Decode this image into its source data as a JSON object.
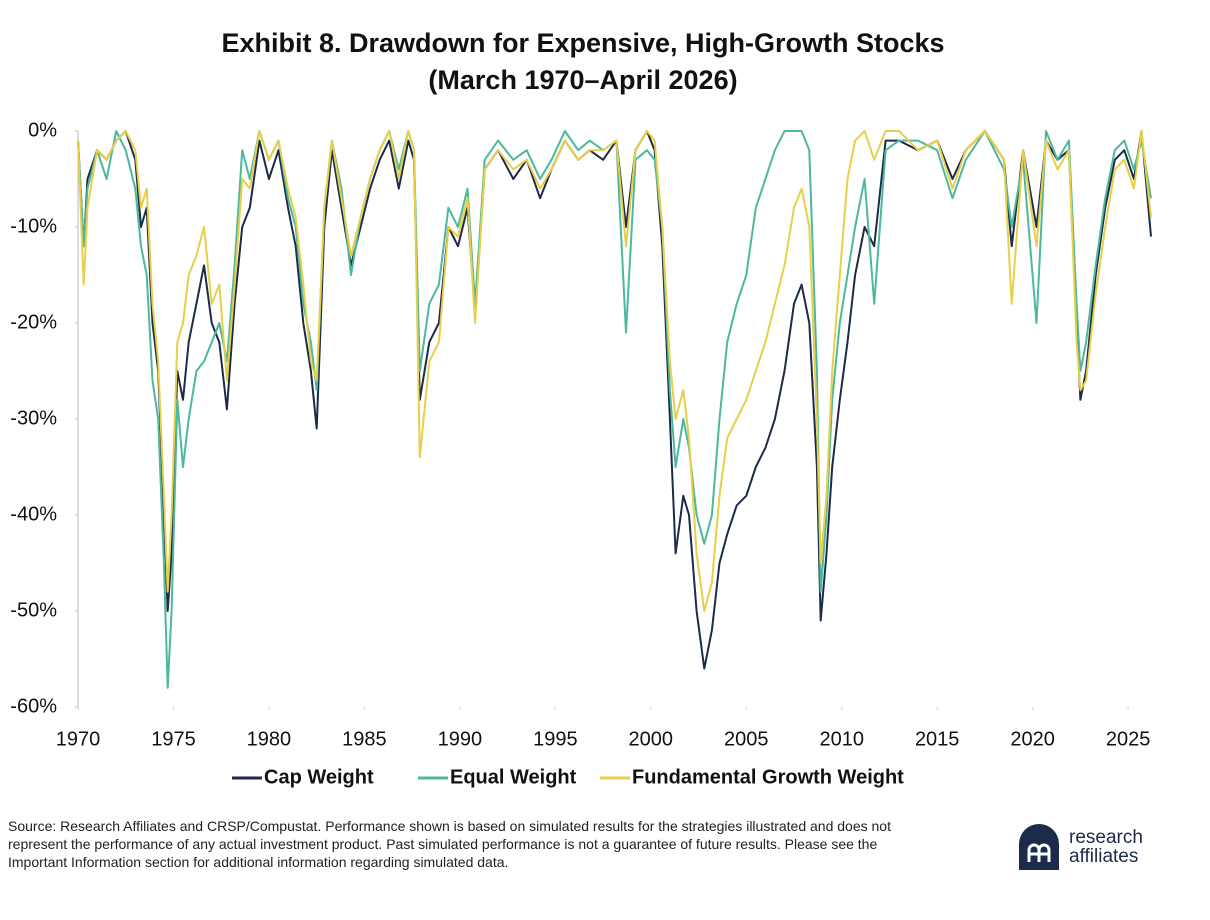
{
  "chart_data": {
    "type": "line",
    "title": [
      "Exhibit 8. Drawdown for Expensive, High-Growth Stocks",
      "(March 1970–April 2026)"
    ],
    "x": [
      1970.0,
      1970.3,
      1970.5,
      1971.0,
      1971.5,
      1972.0,
      1972.5,
      1973.0,
      1973.3,
      1973.6,
      1973.9,
      1974.2,
      1974.5,
      1974.7,
      1974.9,
      1975.2,
      1975.5,
      1975.8,
      1976.2,
      1976.6,
      1977.0,
      1977.4,
      1977.8,
      1978.2,
      1978.6,
      1979.0,
      1979.5,
      1980.0,
      1980.5,
      1981.0,
      1981.4,
      1981.8,
      1982.2,
      1982.5,
      1982.9,
      1983.3,
      1983.8,
      1984.3,
      1984.8,
      1985.3,
      1985.8,
      1986.3,
      1986.8,
      1987.3,
      1987.6,
      1987.9,
      1988.4,
      1988.9,
      1989.4,
      1989.9,
      1990.4,
      1990.8,
      1991.3,
      1992.0,
      1992.8,
      1993.5,
      1994.2,
      1994.8,
      1995.5,
      1996.2,
      1996.8,
      1997.5,
      1998.2,
      1998.7,
      1999.2,
      1999.8,
      2000.2,
      2000.6,
      2001.0,
      2001.3,
      2001.7,
      2002.0,
      2002.4,
      2002.8,
      2003.2,
      2003.6,
      2004.0,
      2004.5,
      2005.0,
      2005.5,
      2006.0,
      2006.5,
      2007.0,
      2007.5,
      2007.9,
      2008.3,
      2008.7,
      2008.9,
      2009.2,
      2009.5,
      2009.9,
      2010.3,
      2010.7,
      2011.2,
      2011.7,
      2012.3,
      2013.0,
      2014.0,
      2015.0,
      2015.8,
      2016.5,
      2017.5,
      2018.5,
      2018.9,
      2019.5,
      2020.2,
      2020.7,
      2021.3,
      2021.9,
      2022.3,
      2022.5,
      2022.8,
      2023.3,
      2023.8,
      2024.3,
      2024.8,
      2025.3,
      2025.7,
      2026.2
    ],
    "series": [
      {
        "name": "Cap Weight",
        "color": "#1c2b4a",
        "values": [
          -1,
          -12,
          -5,
          -2,
          -3,
          -1,
          0,
          -3,
          -10,
          -8,
          -20,
          -25,
          -40,
          -50,
          -44,
          -25,
          -28,
          -22,
          -18,
          -14,
          -20,
          -22,
          -29,
          -18,
          -10,
          -8,
          -1,
          -5,
          -2,
          -8,
          -12,
          -20,
          -25,
          -31,
          -10,
          -2,
          -8,
          -14,
          -10,
          -6,
          -3,
          -1,
          -6,
          -1,
          -3,
          -28,
          -22,
          -20,
          -10,
          -12,
          -8,
          -19,
          -4,
          -2,
          -5,
          -3,
          -7,
          -4,
          -1,
          -3,
          -2,
          -3,
          -1,
          -10,
          -2,
          0,
          -2,
          -12,
          -30,
          -44,
          -38,
          -40,
          -50,
          -56,
          -52,
          -45,
          -42,
          -39,
          -38,
          -35,
          -33,
          -30,
          -25,
          -18,
          -16,
          -20,
          -35,
          -51,
          -44,
          -35,
          -28,
          -22,
          -15,
          -10,
          -12,
          -1,
          -1,
          -2,
          -1,
          -5,
          -2,
          0,
          -3,
          -12,
          -2,
          -10,
          -1,
          -3,
          -2,
          -20,
          -28,
          -25,
          -15,
          -8,
          -3,
          -2,
          -5,
          0,
          -11
        ]
      },
      {
        "name": "Equal Weight",
        "color": "#4db89e",
        "values": [
          -1,
          -12,
          -6,
          -2,
          -5,
          0,
          -2,
          -6,
          -12,
          -15,
          -26,
          -30,
          -45,
          -58,
          -50,
          -28,
          -35,
          -30,
          -25,
          -24,
          -22,
          -20,
          -24,
          -14,
          -2,
          -5,
          0,
          -3,
          -1,
          -7,
          -10,
          -18,
          -22,
          -27,
          -8,
          -1,
          -6,
          -15,
          -9,
          -5,
          -2,
          0,
          -4,
          0,
          -2,
          -25,
          -18,
          -16,
          -8,
          -10,
          -6,
          -18,
          -3,
          -1,
          -3,
          -2,
          -5,
          -3,
          0,
          -2,
          -1,
          -2,
          -1,
          -21,
          -3,
          -2,
          -3,
          -10,
          -27,
          -35,
          -30,
          -33,
          -40,
          -43,
          -40,
          -30,
          -22,
          -18,
          -15,
          -8,
          -5,
          -2,
          0,
          0,
          0,
          -2,
          -25,
          -48,
          -40,
          -28,
          -20,
          -15,
          -10,
          -5,
          -18,
          -2,
          -1,
          -1,
          -2,
          -7,
          -3,
          0,
          -4,
          -10,
          -3,
          -20,
          0,
          -3,
          -1,
          -18,
          -25,
          -22,
          -14,
          -7,
          -2,
          -1,
          -4,
          -1,
          -7
        ]
      },
      {
        "name": "Fundamental Growth Weight",
        "color": "#e8cf4a",
        "values": [
          -1,
          -16,
          -8,
          -2,
          -3,
          -1,
          0,
          -2,
          -8,
          -6,
          -18,
          -24,
          -38,
          -48,
          -40,
          -22,
          -20,
          -15,
          -13,
          -10,
          -18,
          -16,
          -26,
          -16,
          -5,
          -6,
          0,
          -3,
          -1,
          -6,
          -9,
          -16,
          -24,
          -26,
          -8,
          -1,
          -7,
          -13,
          -9,
          -5,
          -2,
          0,
          -5,
          0,
          -2,
          -34,
          -24,
          -22,
          -10,
          -11,
          -7,
          -20,
          -4,
          -2,
          -4,
          -3,
          -6,
          -4,
          -1,
          -3,
          -2,
          -2,
          -1,
          -12,
          -2,
          0,
          -1,
          -10,
          -24,
          -30,
          -27,
          -32,
          -44,
          -50,
          -47,
          -38,
          -32,
          -30,
          -28,
          -25,
          -22,
          -18,
          -14,
          -8,
          -6,
          -10,
          -30,
          -45,
          -38,
          -25,
          -15,
          -5,
          -1,
          0,
          -3,
          0,
          0,
          -2,
          -1,
          -6,
          -2,
          0,
          -3,
          -18,
          -2,
          -12,
          -1,
          -4,
          -2,
          -22,
          -27,
          -26,
          -17,
          -10,
          -4,
          -3,
          -6,
          0,
          -9
        ]
      }
    ],
    "xlim": [
      1970,
      2026.25
    ],
    "xticks": [
      1970,
      1975,
      1980,
      1985,
      1990,
      1995,
      2000,
      2005,
      2010,
      2015,
      2020,
      2025
    ],
    "ylim": [
      -60,
      0
    ],
    "yticks": [
      {
        "value": 0,
        "label": "0%"
      },
      {
        "value": -10,
        "label": "-10%"
      },
      {
        "value": -20,
        "label": "-20%"
      },
      {
        "value": -30,
        "label": "-30%"
      },
      {
        "value": -40,
        "label": "-40%"
      },
      {
        "value": -50,
        "label": "-50%"
      },
      {
        "value": -60,
        "label": "-60%"
      }
    ],
    "grid": false,
    "legend": "bottom",
    "source_note": "Source: Research Affiliates and CRSP/Compustat. Performance shown is based on simulated results for the strategies illustrated and does not represent the performance of any actual investment product. Past simulated performance is not a guarantee of future results. Please see the Important Information section for additional information regarding simulated data."
  },
  "logo": {
    "text": [
      "research",
      "affiliates"
    ]
  }
}
